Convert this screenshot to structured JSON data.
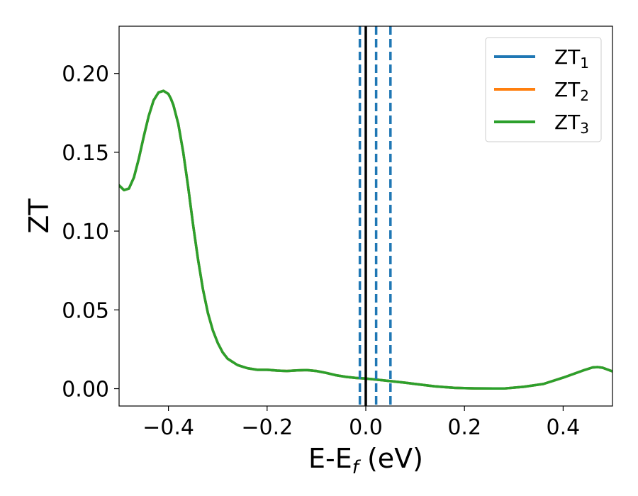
{
  "chart_data": {
    "type": "line",
    "title": "",
    "xlabel": "E-E",
    "xlabel_sub": "f",
    "xlabel_unit": " (eV)",
    "ylabel": "ZT",
    "xlim": [
      -0.5,
      0.5
    ],
    "ylim": [
      -0.011,
      0.23
    ],
    "grid": false,
    "legend_position": "top-right",
    "xticks": [
      -0.4,
      -0.2,
      0.0,
      0.2,
      0.4
    ],
    "xtick_labels": [
      "−0.4",
      "−0.2",
      "0.0",
      "0.2",
      "0.4"
    ],
    "yticks": [
      0.0,
      0.05,
      0.1,
      0.15,
      0.2
    ],
    "ytick_labels": [
      "0.00",
      "0.05",
      "0.10",
      "0.15",
      "0.20"
    ],
    "vlines": [
      {
        "x": 0.0,
        "style": "solid",
        "color": "#000000"
      },
      {
        "x": -0.012,
        "style": "dashed",
        "color": "#1f77b4"
      },
      {
        "x": 0.021,
        "style": "dashed",
        "color": "#1f77b4"
      },
      {
        "x": 0.05,
        "style": "dashed",
        "color": "#1f77b4"
      }
    ],
    "x": [
      -0.5,
      -0.49,
      -0.48,
      -0.47,
      -0.46,
      -0.45,
      -0.44,
      -0.43,
      -0.42,
      -0.41,
      -0.4,
      -0.395,
      -0.39,
      -0.38,
      -0.37,
      -0.36,
      -0.35,
      -0.34,
      -0.33,
      -0.32,
      -0.31,
      -0.3,
      -0.29,
      -0.28,
      -0.27,
      -0.26,
      -0.25,
      -0.24,
      -0.22,
      -0.2,
      -0.18,
      -0.16,
      -0.14,
      -0.12,
      -0.1,
      -0.08,
      -0.06,
      -0.04,
      -0.02,
      0.0,
      0.02,
      0.05,
      0.08,
      0.1,
      0.14,
      0.18,
      0.22,
      0.26,
      0.28,
      0.32,
      0.36,
      0.4,
      0.44,
      0.46,
      0.47,
      0.48,
      0.5
    ],
    "series": [
      {
        "name": "ZT",
        "sub": "1",
        "color": "#1f77b4",
        "values": [
          0.129,
          0.126,
          0.127,
          0.134,
          0.146,
          0.16,
          0.173,
          0.183,
          0.188,
          0.189,
          0.187,
          0.184,
          0.18,
          0.168,
          0.15,
          0.128,
          0.104,
          0.082,
          0.063,
          0.048,
          0.037,
          0.029,
          0.023,
          0.019,
          0.017,
          0.015,
          0.014,
          0.013,
          0.012,
          0.012,
          0.0115,
          0.0112,
          0.0116,
          0.0118,
          0.0112,
          0.01,
          0.0085,
          0.0075,
          0.0068,
          0.0064,
          0.0058,
          0.0048,
          0.0038,
          0.003,
          0.0015,
          0.0005,
          0.0002,
          0.0001,
          0.0001,
          0.0012,
          0.003,
          0.007,
          0.0115,
          0.0135,
          0.0137,
          0.0133,
          0.011
        ]
      },
      {
        "name": "ZT",
        "sub": "2",
        "color": "#ff7f0e",
        "values": [
          0.129,
          0.126,
          0.127,
          0.134,
          0.146,
          0.16,
          0.173,
          0.183,
          0.188,
          0.189,
          0.187,
          0.184,
          0.18,
          0.168,
          0.15,
          0.128,
          0.104,
          0.082,
          0.063,
          0.048,
          0.037,
          0.029,
          0.023,
          0.019,
          0.017,
          0.015,
          0.014,
          0.013,
          0.012,
          0.012,
          0.0115,
          0.0112,
          0.0116,
          0.0118,
          0.0112,
          0.01,
          0.0085,
          0.0075,
          0.0068,
          0.0064,
          0.0058,
          0.0048,
          0.0038,
          0.003,
          0.0015,
          0.0005,
          0.0002,
          0.0001,
          0.0001,
          0.0012,
          0.003,
          0.007,
          0.0115,
          0.0135,
          0.0137,
          0.0133,
          0.011
        ]
      },
      {
        "name": "ZT",
        "sub": "3",
        "color": "#2ca02c",
        "values": [
          0.129,
          0.126,
          0.127,
          0.134,
          0.146,
          0.16,
          0.173,
          0.183,
          0.188,
          0.189,
          0.187,
          0.184,
          0.18,
          0.168,
          0.15,
          0.128,
          0.104,
          0.082,
          0.063,
          0.048,
          0.037,
          0.029,
          0.023,
          0.019,
          0.017,
          0.015,
          0.014,
          0.013,
          0.012,
          0.012,
          0.0115,
          0.0112,
          0.0116,
          0.0118,
          0.0112,
          0.01,
          0.0085,
          0.0075,
          0.0068,
          0.0064,
          0.0058,
          0.0048,
          0.0038,
          0.003,
          0.0015,
          0.0005,
          0.0002,
          0.0001,
          0.0001,
          0.0012,
          0.003,
          0.007,
          0.0115,
          0.0135,
          0.0137,
          0.0133,
          0.011
        ]
      }
    ]
  }
}
